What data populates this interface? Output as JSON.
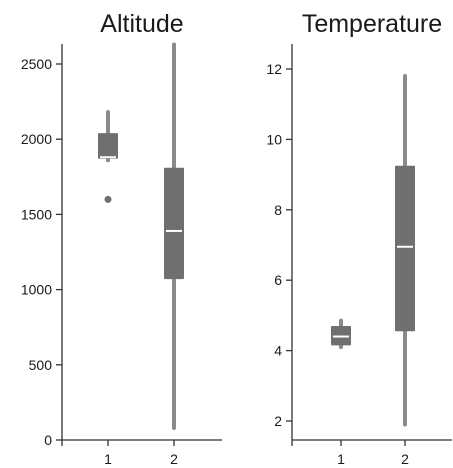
{
  "chart_data": [
    {
      "type": "box",
      "title": "Altitude",
      "categories": [
        "1",
        "2"
      ],
      "ylim": [
        0,
        2500
      ],
      "yticks": [
        0,
        500,
        1000,
        1500,
        2000,
        2500
      ],
      "grid": false,
      "boxes": [
        {
          "category": "1",
          "whisker_low": 1860,
          "q1": 1870,
          "median": 1880,
          "q3": 2040,
          "whisker_high": 2180,
          "outliers": [
            1600
          ]
        },
        {
          "category": "2",
          "whisker_low": 80,
          "q1": 1070,
          "median": 1390,
          "q3": 1810,
          "whisker_high": 2630,
          "outliers": []
        }
      ]
    },
    {
      "type": "box",
      "title": "Temperature",
      "categories": [
        "1",
        "2"
      ],
      "ylim": [
        1.5,
        12
      ],
      "yticks": [
        2,
        4,
        6,
        8,
        10,
        12
      ],
      "grid": false,
      "boxes": [
        {
          "category": "1",
          "whisker_low": 4.1,
          "q1": 4.15,
          "median": 4.4,
          "q3": 4.7,
          "whisker_high": 4.85,
          "outliers": []
        },
        {
          "category": "2",
          "whisker_low": 1.9,
          "q1": 4.55,
          "median": 6.95,
          "q3": 9.25,
          "whisker_high": 11.8,
          "outliers": []
        }
      ]
    }
  ],
  "colors": {
    "box": "#6f6f6f",
    "median": "#ffffff",
    "whisker": "#8a8a8a",
    "axis": "#333333",
    "text": "#1a1a1a"
  }
}
